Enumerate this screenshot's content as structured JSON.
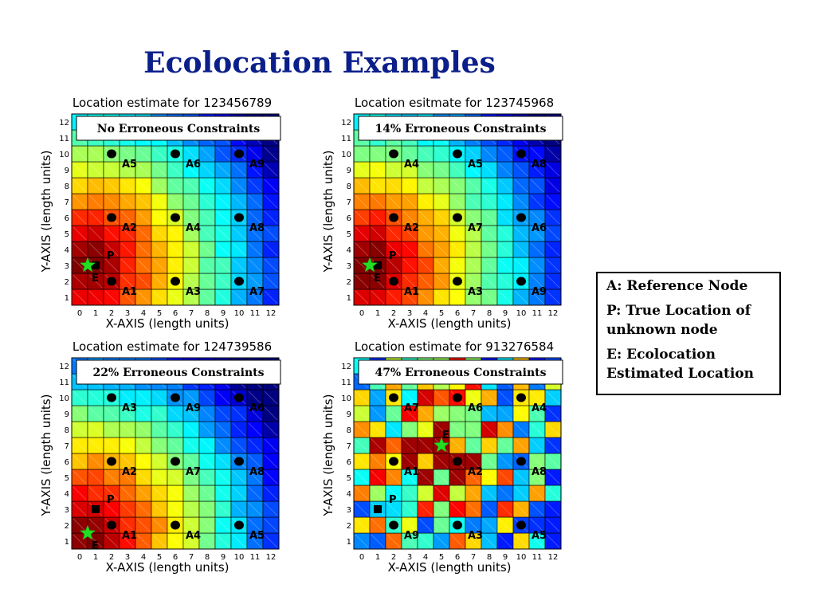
{
  "slide": {
    "title": "Ecolocation Examples"
  },
  "legend_box": {
    "lines": [
      "A: Reference Node",
      "P: True Location of unknown node",
      "E: Ecolocation Estimated Location"
    ]
  },
  "chart_data": [
    {
      "type": "heatmap",
      "title": "Location estimate for 123456789",
      "annotation": "No Erroneous Constraints",
      "xlabel": "X-AXIS (length units)",
      "ylabel": "Y-AXIS (length units)",
      "xticks": [
        0,
        1,
        2,
        3,
        4,
        5,
        6,
        7,
        8,
        9,
        10,
        11,
        12
      ],
      "yticks": [
        1,
        2,
        3,
        4,
        5,
        6,
        7,
        8,
        9,
        10,
        11,
        12
      ],
      "reference_nodes": [
        {
          "label": "A1",
          "x": 2,
          "y": 2
        },
        {
          "label": "A2",
          "x": 2,
          "y": 6
        },
        {
          "label": "A3",
          "x": 6,
          "y": 2
        },
        {
          "label": "A4",
          "x": 6,
          "y": 6
        },
        {
          "label": "A5",
          "x": 2,
          "y": 10
        },
        {
          "label": "A6",
          "x": 6,
          "y": 10
        },
        {
          "label": "A7",
          "x": 10,
          "y": 2
        },
        {
          "label": "A8",
          "x": 10,
          "y": 6
        },
        {
          "label": "A9",
          "x": 10,
          "y": 10
        }
      ],
      "true_location": {
        "label": "P",
        "x": 1,
        "y": 3
      },
      "estimated_location": {
        "label": "E",
        "x": 0.5,
        "y": 3
      },
      "pattern": "gradient"
    },
    {
      "type": "heatmap",
      "title": "Location esitmate for 123745968",
      "annotation": "14% Erroneous Constraints",
      "xlabel": "X-AXIS (length units)",
      "ylabel": "Y-AXIS (length units)",
      "xticks": [
        0,
        1,
        2,
        3,
        4,
        5,
        6,
        7,
        8,
        9,
        10,
        11,
        12
      ],
      "yticks": [
        1,
        2,
        3,
        4,
        5,
        6,
        7,
        8,
        9,
        10,
        11,
        12
      ],
      "reference_nodes": [
        {
          "label": "A1",
          "x": 2,
          "y": 2
        },
        {
          "label": "A2",
          "x": 2,
          "y": 6
        },
        {
          "label": "A3",
          "x": 6,
          "y": 2
        },
        {
          "label": "A7",
          "x": 6,
          "y": 6
        },
        {
          "label": "A4",
          "x": 2,
          "y": 10
        },
        {
          "label": "A5",
          "x": 6,
          "y": 10
        },
        {
          "label": "A9",
          "x": 10,
          "y": 2
        },
        {
          "label": "A6",
          "x": 10,
          "y": 6
        },
        {
          "label": "A8",
          "x": 10,
          "y": 10
        }
      ],
      "true_location": {
        "label": "P",
        "x": 1,
        "y": 3
      },
      "estimated_location": {
        "label": "E",
        "x": 0.5,
        "y": 3
      },
      "pattern": "gradient"
    },
    {
      "type": "heatmap",
      "title": "Location estimate for 124739586",
      "annotation": "22% Erroneous Constraints",
      "xlabel": "X-AXIS (length units)",
      "ylabel": "Y-AXIS (length units)",
      "xticks": [
        0,
        1,
        2,
        3,
        4,
        5,
        6,
        7,
        8,
        9,
        10,
        11,
        12
      ],
      "yticks": [
        1,
        2,
        3,
        4,
        5,
        6,
        7,
        8,
        9,
        10,
        11,
        12
      ],
      "reference_nodes": [
        {
          "label": "A1",
          "x": 2,
          "y": 2
        },
        {
          "label": "A2",
          "x": 2,
          "y": 6
        },
        {
          "label": "A4",
          "x": 6,
          "y": 2
        },
        {
          "label": "A7",
          "x": 6,
          "y": 6
        },
        {
          "label": "A3",
          "x": 2,
          "y": 10
        },
        {
          "label": "A9",
          "x": 6,
          "y": 10
        },
        {
          "label": "A5",
          "x": 10,
          "y": 2
        },
        {
          "label": "A8",
          "x": 10,
          "y": 6
        },
        {
          "label": "A6",
          "x": 10,
          "y": 10
        }
      ],
      "true_location": {
        "label": "P",
        "x": 1,
        "y": 3
      },
      "estimated_location": {
        "label": "E",
        "x": 0.5,
        "y": 1.5
      },
      "pattern": "gradient"
    },
    {
      "type": "heatmap",
      "title": "Location estimate for 913276584",
      "annotation": "47% Erroneous Constraints",
      "xlabel": "X-AXIS (length units)",
      "ylabel": "Y-AXIS (length units)",
      "xticks": [
        0,
        1,
        2,
        3,
        4,
        5,
        6,
        7,
        8,
        9,
        10,
        11,
        12
      ],
      "yticks": [
        1,
        2,
        3,
        4,
        5,
        6,
        7,
        8,
        9,
        10,
        11,
        12
      ],
      "reference_nodes": [
        {
          "label": "A9",
          "x": 2,
          "y": 2
        },
        {
          "label": "A1",
          "x": 2,
          "y": 6
        },
        {
          "label": "A3",
          "x": 6,
          "y": 2
        },
        {
          "label": "A2",
          "x": 6,
          "y": 6
        },
        {
          "label": "A7",
          "x": 2,
          "y": 10
        },
        {
          "label": "A6",
          "x": 6,
          "y": 10
        },
        {
          "label": "A5",
          "x": 10,
          "y": 2
        },
        {
          "label": "A8",
          "x": 10,
          "y": 6
        },
        {
          "label": "A4",
          "x": 10,
          "y": 10
        }
      ],
      "true_location": {
        "label": "P",
        "x": 1,
        "y": 3
      },
      "estimated_location": {
        "label": "E",
        "x": 5,
        "y": 7
      },
      "pattern": "noisy"
    }
  ]
}
